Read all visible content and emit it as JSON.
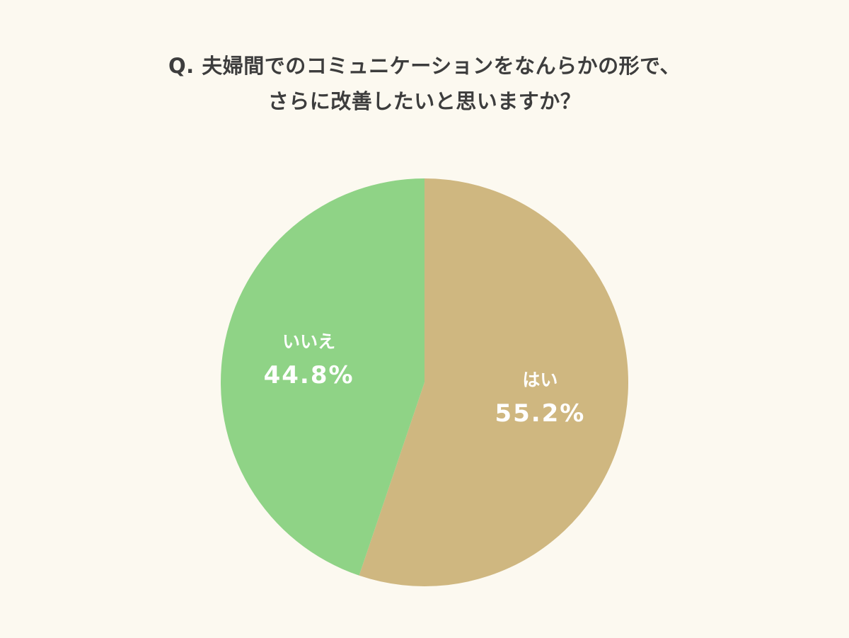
{
  "chart_data": {
    "type": "pie",
    "title_lines": [
      "Q. 夫婦間でのコミュニケーションをなんらかの形で、",
      "さらに改善したいと思いますか？"
    ],
    "slices": [
      {
        "label": "はい",
        "value": 55.2,
        "display": "55.2%",
        "color": "#cfb780"
      },
      {
        "label": "いいえ",
        "value": 44.8,
        "display": "44.8%",
        "color": "#8fd386"
      }
    ],
    "start": "12 o'clock",
    "direction": "clockwise"
  }
}
